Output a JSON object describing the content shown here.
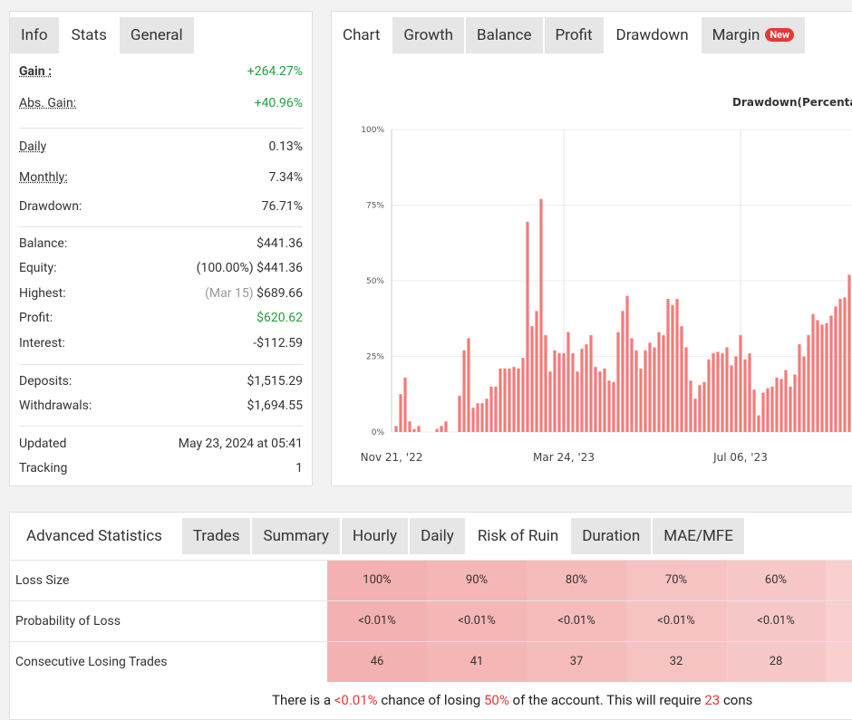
{
  "left_tabs": [
    "Info",
    "Stats",
    "General"
  ],
  "active_left_tab": 1,
  "stats": [
    [
      {
        "label": "Gain :",
        "value": "+264.27%",
        "strong": true,
        "underline": true,
        "green": true
      },
      {
        "label": "Abs. Gain:",
        "value": "+40.96%",
        "underline": true,
        "green": true
      }
    ],
    [
      {
        "label": "Daily",
        "value": "0.13%",
        "underline": true
      },
      {
        "label": "Monthly:",
        "value": "7.34%",
        "underline": true
      },
      {
        "label": "Drawdown:",
        "value": "76.71%"
      }
    ],
    [
      {
        "label": "Balance:",
        "value": "$441.36"
      },
      {
        "label": "Equity:",
        "note": "(100.00%)",
        "value": "$441.36"
      },
      {
        "label": "Highest:",
        "note": "(Mar 15)",
        "value": "$689.66",
        "muted_note": true
      },
      {
        "label": "Profit:",
        "value": "$620.62",
        "green": true
      },
      {
        "label": "Interest:",
        "value": "-$112.59"
      }
    ],
    [
      {
        "label": "Deposits:",
        "value": "$1,515.29"
      },
      {
        "label": "Withdrawals:",
        "value": "$1,694.55"
      }
    ],
    [
      {
        "label": "Updated",
        "value": "May 23, 2024 at 05:41"
      },
      {
        "label": "Tracking",
        "value": "1"
      }
    ]
  ],
  "chart_tabs": {
    "label": "Chart",
    "tabs": [
      "Growth",
      "Balance",
      "Profit",
      "Drawdown",
      "Margin"
    ],
    "active": 3,
    "badge": "New"
  },
  "chart_data": {
    "type": "bar",
    "title": "Drawdown(Percenta",
    "color": "#f47a7a",
    "ylim": [
      0,
      100
    ],
    "yticks": [
      {
        "value": 0,
        "label": "0%"
      },
      {
        "value": 25,
        "label": "25%"
      },
      {
        "value": 50,
        "label": "50%"
      },
      {
        "value": 75,
        "label": "75%"
      },
      {
        "value": 100,
        "label": "100%"
      }
    ],
    "grid": true,
    "categories": [
      "Nov 21, '22",
      null,
      null,
      null,
      null,
      null,
      null,
      null,
      null,
      null,
      null,
      null,
      null,
      null,
      null,
      null,
      null,
      null,
      null,
      null,
      null,
      null,
      null,
      null,
      null,
      null,
      null,
      null,
      null,
      null,
      null,
      null,
      null,
      null,
      null,
      null,
      null,
      "Mar 24, '23",
      null,
      null,
      null,
      null,
      null,
      null,
      null,
      null,
      null,
      null,
      null,
      null,
      null,
      null,
      null,
      null,
      null,
      null,
      null,
      null,
      null,
      null,
      null,
      null,
      null,
      null,
      null,
      null,
      null,
      null,
      null,
      null,
      null,
      null,
      null,
      null,
      null,
      null,
      "Jul 06, '23",
      null,
      null,
      null,
      null,
      null,
      null,
      null,
      null,
      null,
      null,
      null,
      null,
      null,
      null,
      null,
      null,
      null,
      null,
      null,
      null,
      null,
      null,
      null,
      null
    ],
    "values": [
      2,
      12.5,
      18,
      3.5,
      1,
      2,
      null,
      null,
      null,
      1,
      2,
      3.5,
      null,
      null,
      12,
      27,
      31,
      8,
      9.5,
      9.5,
      11,
      15,
      15,
      21,
      21,
      21,
      21.5,
      21,
      24.5,
      69.5,
      35,
      40,
      77,
      32,
      20,
      27,
      26,
      26,
      33,
      26,
      20,
      27.5,
      29,
      32,
      21.5,
      20,
      21,
      17,
      16.5,
      33,
      40,
      45,
      31,
      27,
      21,
      27,
      29.5,
      28,
      33,
      32,
      44,
      42,
      44,
      35,
      28,
      17,
      11,
      15.5,
      16.5,
      24,
      26,
      26.5,
      26,
      28,
      22,
      25,
      32,
      24,
      26,
      14,
      5.5,
      13,
      14.5,
      15,
      18,
      17.5,
      20.5,
      15,
      19,
      29,
      25,
      32,
      39,
      37,
      35.5,
      36,
      38.5,
      41.5,
      44,
      44.5,
      52
    ]
  },
  "bottom_tabs": [
    "Advanced Statistics",
    "Trades",
    "Summary",
    "Hourly",
    "Daily",
    "Risk of Ruin",
    "Duration",
    "MAE/MFE"
  ],
  "active_bottom_tab": 5,
  "risk_table": {
    "rows": [
      {
        "label": "Loss Size",
        "cells": [
          "100%",
          "90%",
          "80%",
          "70%",
          "60%"
        ]
      },
      {
        "label": "Probability of Loss",
        "cells": [
          "<0.01%",
          "<0.01%",
          "<0.01%",
          "<0.01%",
          "<0.01%"
        ]
      },
      {
        "label": "Consecutive Losing Trades",
        "cells": [
          46,
          41,
          37,
          32,
          28
        ]
      }
    ]
  },
  "summary": [
    {
      "text": "There is a "
    },
    {
      "text": "<0.01%",
      "red": true
    },
    {
      "text": " chance of losing "
    },
    {
      "text": "50%",
      "red": true
    },
    {
      "text": " of the account. This will require "
    },
    {
      "text": "23",
      "red": true
    },
    {
      "text": " cons"
    }
  ]
}
